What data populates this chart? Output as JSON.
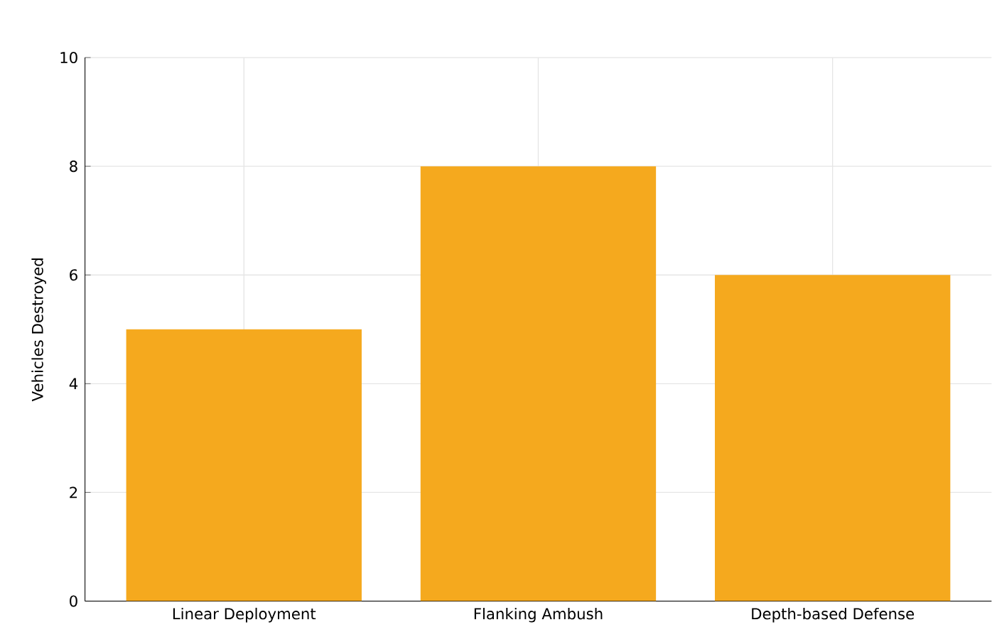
{
  "chart_data": {
    "type": "bar",
    "ylabel": "Vehicles Destroyed",
    "categories": [
      "Linear Deployment",
      "Flanking Ambush",
      "Depth-based Defense"
    ],
    "values": [
      5,
      8,
      6
    ],
    "color": "#f5a91e",
    "ylim": [
      0,
      10
    ],
    "yticks": [
      0,
      2,
      4,
      6,
      8,
      10
    ],
    "grid": true
  }
}
